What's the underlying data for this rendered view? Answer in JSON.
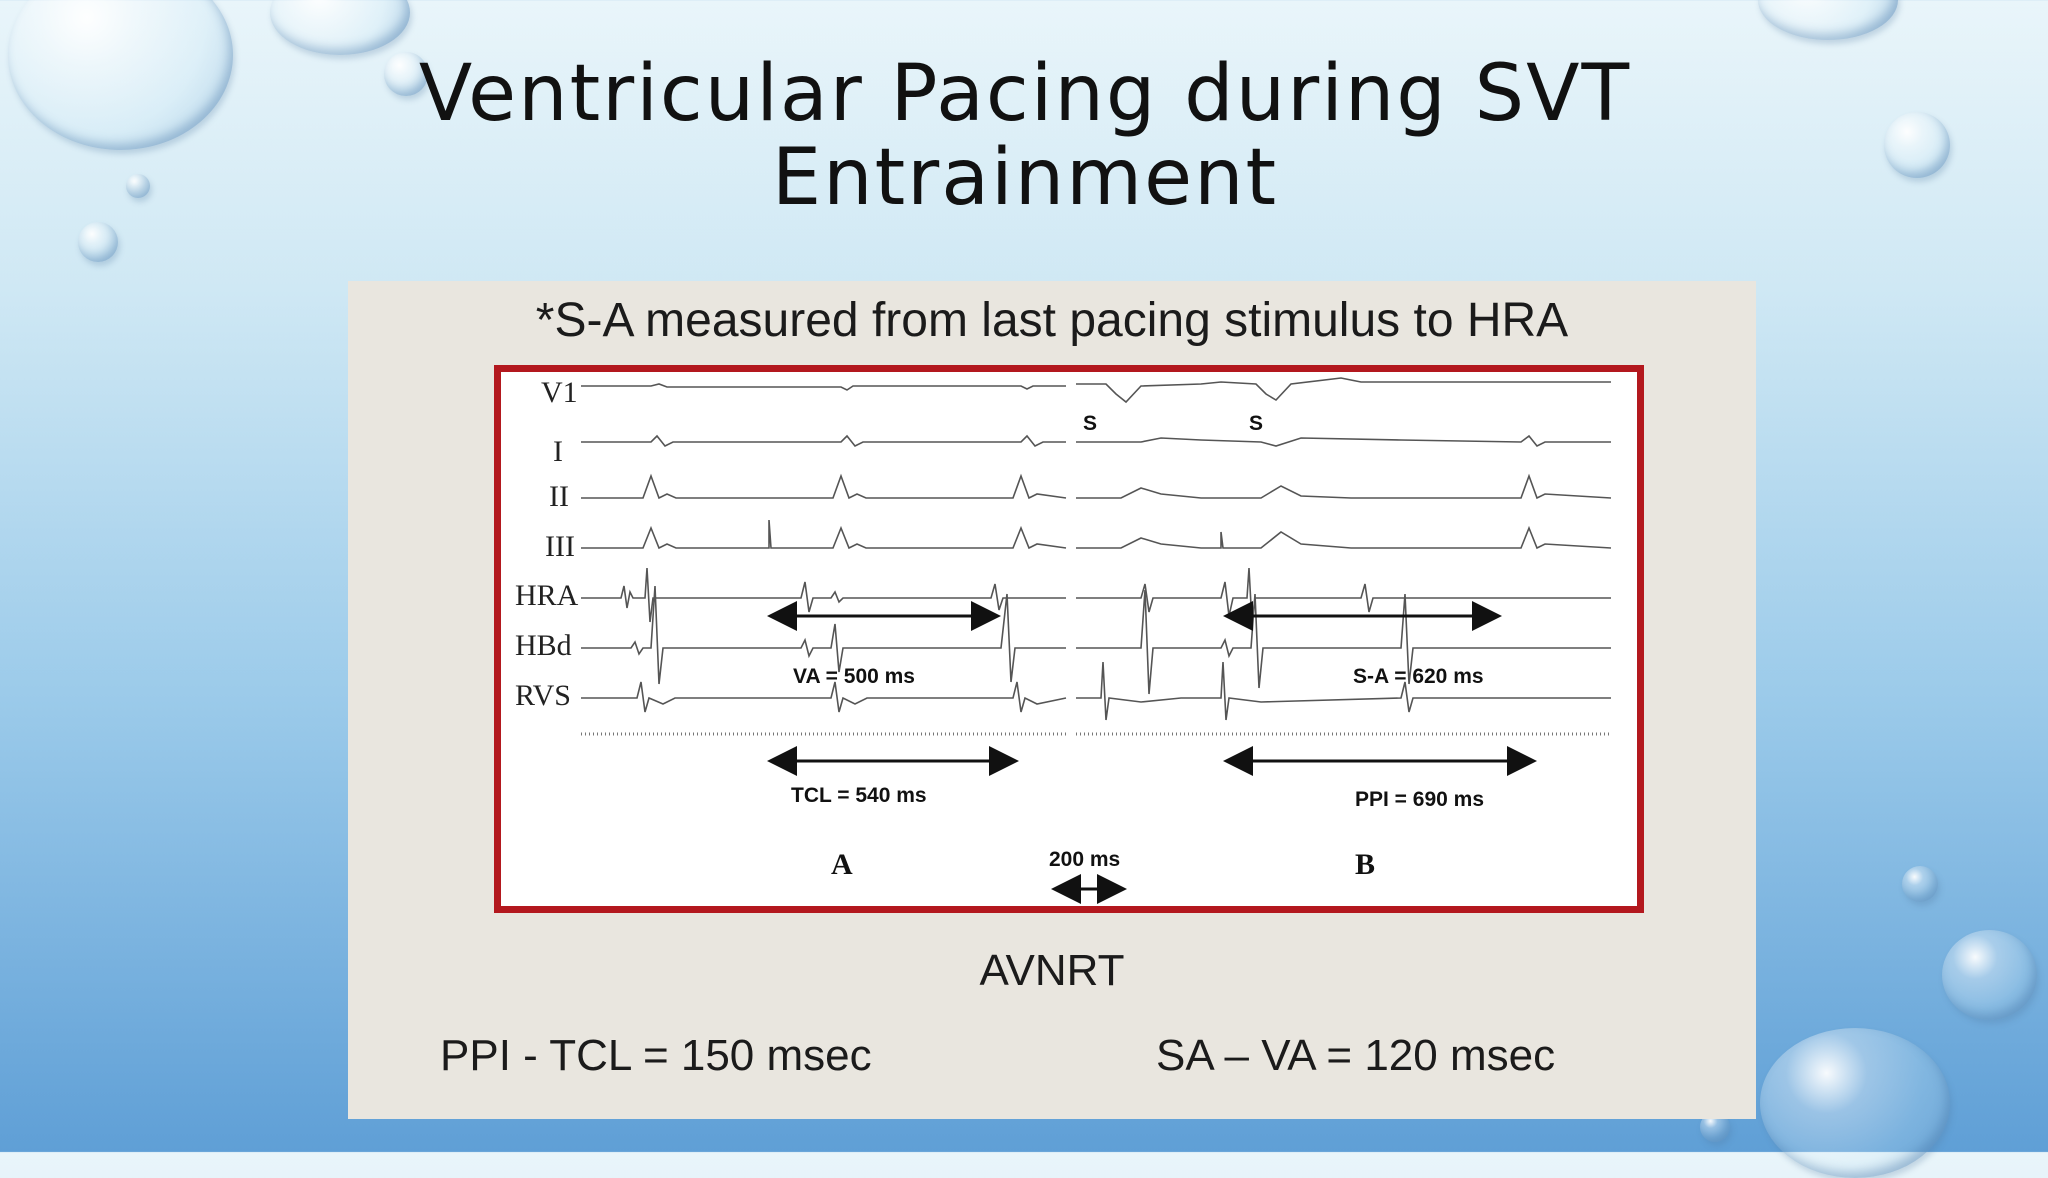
{
  "slide": {
    "title_line1": "Ventricular Pacing during SVT",
    "title_line2": "Entrainment"
  },
  "figure": {
    "caption": "*S-A measured from last pacing stimulus to HRA",
    "leads": [
      "V1",
      "I",
      "II",
      "III",
      "HRA",
      "HBd",
      "RVS"
    ],
    "stimulus_marker": "S",
    "measurements": {
      "va": "VA = 500 ms",
      "tcl": "TCL = 540 ms",
      "sa": "S-A = 620 ms",
      "ppi": "PPI = 690 ms"
    },
    "scale_label": "200 ms",
    "panel_a": "A",
    "panel_b": "B",
    "frame_color": "#b3181e"
  },
  "diagnosis": "AVNRT",
  "formulas": {
    "left": "PPI - TCL = 150 msec",
    "right": "SA – VA = 120 msec"
  }
}
